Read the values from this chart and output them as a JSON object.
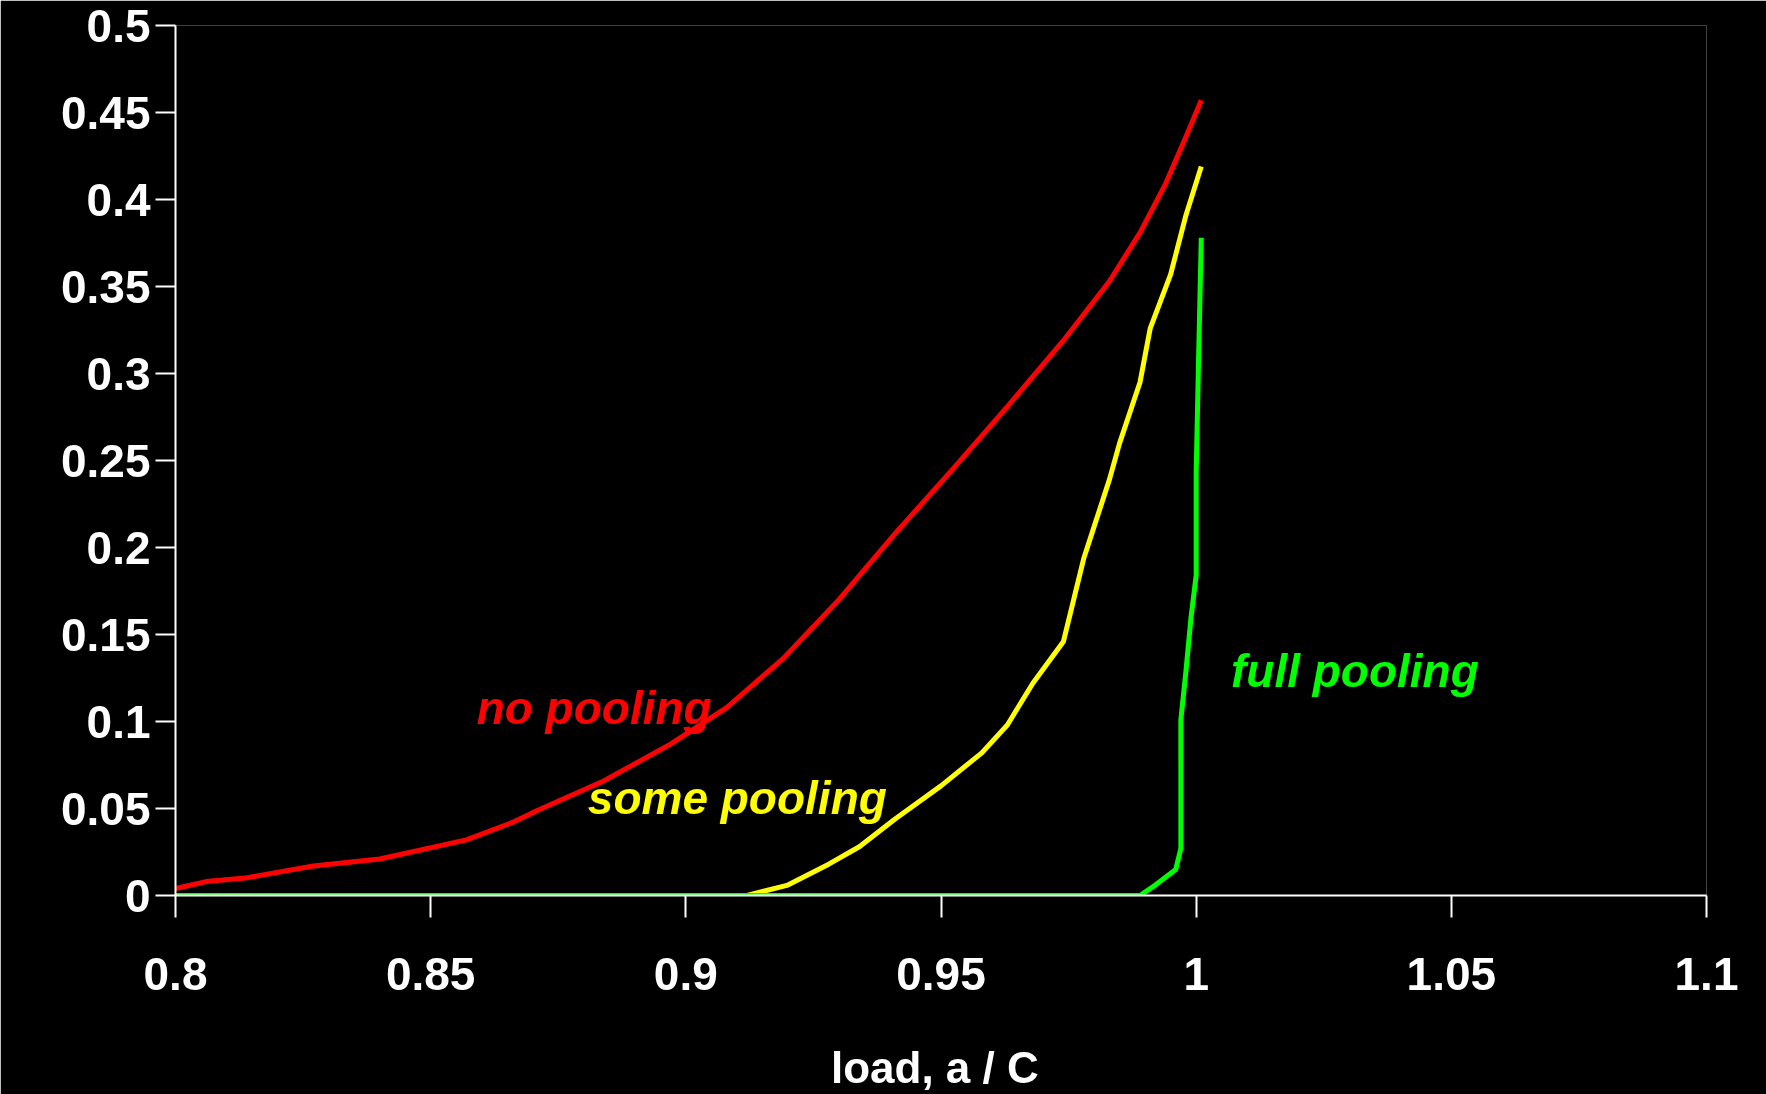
{
  "chart_data": {
    "type": "line",
    "xlabel": "load,  a / C",
    "xlim": [
      0.8,
      1.1
    ],
    "ylim": [
      0,
      0.5
    ],
    "xticks": [
      0.8,
      0.85,
      0.9,
      0.95,
      1,
      1.05,
      1.1
    ],
    "yticks": [
      0,
      0.05,
      0.1,
      0.15,
      0.2,
      0.25,
      0.3,
      0.35,
      0.4,
      0.45,
      0.5
    ],
    "grid": false,
    "marker": "none",
    "line_style": "solid",
    "series": [
      {
        "name": "no pooling",
        "color": "#ff0000",
        "x": [
          0.8,
          0.806,
          0.8136,
          0.827,
          0.84,
          0.857,
          0.866,
          0.871,
          0.884,
          0.897,
          0.908,
          0.919,
          0.93,
          0.941,
          0.952,
          0.963,
          0.974,
          0.983,
          0.989,
          0.994,
          0.998,
          1.001
        ],
        "values": [
          0.004,
          0.008,
          0.01,
          0.017,
          0.021,
          0.032,
          0.042,
          0.049,
          0.066,
          0.087,
          0.108,
          0.136,
          0.17,
          0.208,
          0.244,
          0.281,
          0.319,
          0.353,
          0.381,
          0.409,
          0.436,
          0.457
        ]
      },
      {
        "name": "some pooling",
        "color": "#ffff00",
        "x": [
          0.8,
          0.912,
          0.92,
          0.928,
          0.934,
          0.941,
          0.95,
          0.958,
          0.963,
          0.968,
          0.974,
          0.976,
          0.978,
          0.98,
          0.983,
          0.985,
          0.989,
          0.991,
          0.995,
          0.998,
          1.001
        ],
        "values": [
          0,
          0,
          0.006,
          0.018,
          0.028,
          0.044,
          0.063,
          0.082,
          0.098,
          0.122,
          0.146,
          0.17,
          0.194,
          0.212,
          0.239,
          0.26,
          0.295,
          0.326,
          0.357,
          0.391,
          0.419
        ]
      },
      {
        "name": "full pooling",
        "color": "#00ff00",
        "x": [
          0.8,
          0.989,
          0.992,
          0.996,
          0.997,
          0.997,
          0.998,
          0.999,
          1.0,
          1.0,
          1.0005,
          1.001
        ],
        "values": [
          0,
          0,
          0.006,
          0.015,
          0.027,
          0.101,
          0.129,
          0.16,
          0.184,
          0.243,
          0.312,
          0.378
        ]
      }
    ]
  }
}
